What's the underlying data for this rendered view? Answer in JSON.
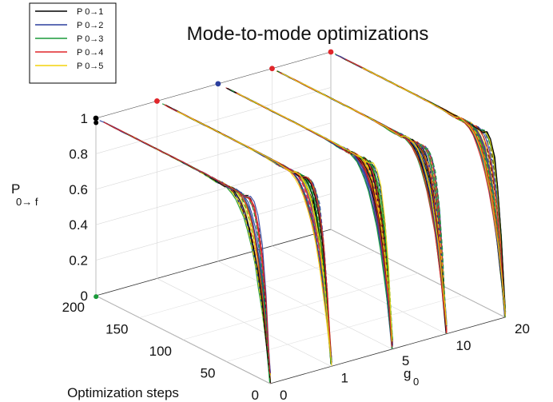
{
  "chart_data": {
    "type": "line",
    "title": "Mode-to-mode optimizations",
    "xlabel": "g",
    "xlabel_sub": "0",
    "ylabel": "Optimization steps",
    "zlabel": "P",
    "zlabel_sub": "0→ f",
    "x_ticks": [
      "0",
      "1",
      "5",
      "10",
      "20"
    ],
    "y_ticks": [
      "0",
      "50",
      "100",
      "150",
      "200"
    ],
    "z_ticks": [
      "0",
      "0.2",
      "0.4",
      "0.6",
      "0.8",
      "1"
    ],
    "ylim": [
      0,
      200
    ],
    "zlim": [
      0,
      1
    ],
    "grid": true,
    "legend_position": "top-left",
    "series": [
      {
        "name": "P 0→1",
        "color": "#000000"
      },
      {
        "name": "P 0→2",
        "color": "#2b3f9e"
      },
      {
        "name": "P 0→3",
        "color": "#1a9a3a"
      },
      {
        "name": "P 0→4",
        "color": "#e0262a"
      },
      {
        "name": "P 0→5",
        "color": "#f3d20c"
      }
    ],
    "panels": [
      {
        "g0": 0,
        "start_color": "#000000"
      },
      {
        "g0": 1,
        "start_color": "#e0262a"
      },
      {
        "g0": 5,
        "start_color": "#2b3f9e"
      },
      {
        "g0": 10,
        "start_color": "#e0262a"
      },
      {
        "g0": 20,
        "start_color": "#e0262a"
      }
    ]
  }
}
